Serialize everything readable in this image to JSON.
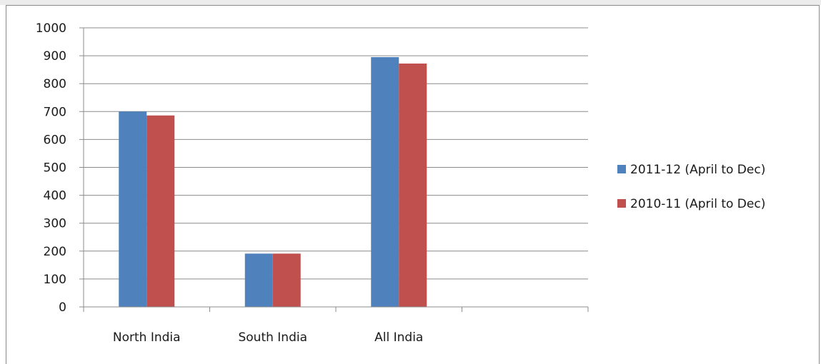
{
  "chart_data": {
    "type": "bar",
    "categories": [
      "North India",
      "South India",
      "All India",
      ""
    ],
    "series": [
      {
        "name": "2011-12 (April to Dec)",
        "color": "#4f81bd",
        "values": [
          700,
          191,
          895,
          null
        ]
      },
      {
        "name": "2010-11 (April to Dec)",
        "color": "#c0504d",
        "values": [
          686,
          191,
          872,
          null
        ]
      }
    ],
    "ylim": [
      0,
      1000
    ],
    "yticks": [
      0,
      100,
      200,
      300,
      400,
      500,
      600,
      700,
      800,
      900,
      1000
    ],
    "grid": true,
    "legend_position": "right",
    "title": "",
    "xlabel": "",
    "ylabel": ""
  }
}
